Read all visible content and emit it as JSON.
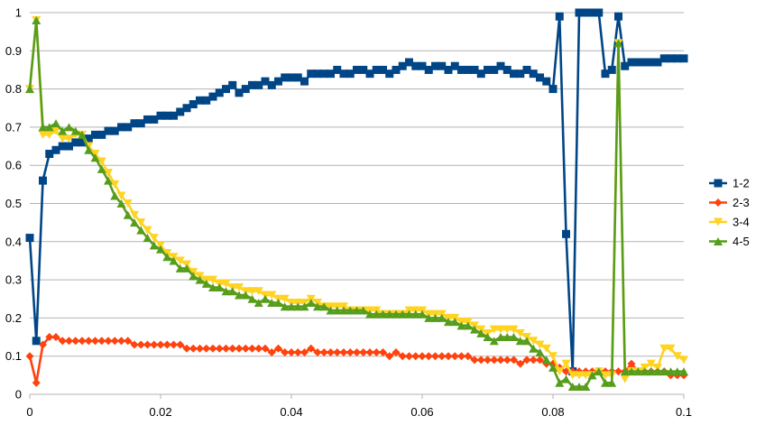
{
  "chart_data": {
    "type": "line",
    "title": "",
    "xlabel": "",
    "ylabel": "",
    "xlim": [
      0,
      0.1
    ],
    "ylim": [
      0,
      1
    ],
    "xticks": [
      {
        "value": 0,
        "label": "0"
      },
      {
        "value": 0.02,
        "label": "0.02"
      },
      {
        "value": 0.04,
        "label": "0.04"
      },
      {
        "value": 0.06,
        "label": "0.06"
      },
      {
        "value": 0.08,
        "label": "0.08"
      },
      {
        "value": 0.1,
        "label": "0.1"
      }
    ],
    "yticks": [
      {
        "value": 0,
        "label": "0"
      },
      {
        "value": 0.1,
        "label": "0.1"
      },
      {
        "value": 0.2,
        "label": "0.2"
      },
      {
        "value": 0.3,
        "label": "0.3"
      },
      {
        "value": 0.4,
        "label": "0.4"
      },
      {
        "value": 0.5,
        "label": "0.5"
      },
      {
        "value": 0.6,
        "label": "0.6"
      },
      {
        "value": 0.7,
        "label": "0.7"
      },
      {
        "value": 0.8,
        "label": "0.8"
      },
      {
        "value": 0.9,
        "label": "0.9"
      },
      {
        "value": 1,
        "label": "1"
      }
    ],
    "grid": "horizontal",
    "legend_position": "right",
    "x": [
      0,
      0.001,
      0.002,
      0.003,
      0.004,
      0.005,
      0.006,
      0.007,
      0.008,
      0.009,
      0.01,
      0.011,
      0.012,
      0.013,
      0.014,
      0.015,
      0.016,
      0.017,
      0.018,
      0.019,
      0.02,
      0.021,
      0.022,
      0.023,
      0.024,
      0.025,
      0.026,
      0.027,
      0.028,
      0.029,
      0.03,
      0.031,
      0.032,
      0.033,
      0.034,
      0.035,
      0.036,
      0.037,
      0.038,
      0.039,
      0.04,
      0.041,
      0.042,
      0.043,
      0.044,
      0.045,
      0.046,
      0.047,
      0.048,
      0.049,
      0.05,
      0.051,
      0.052,
      0.053,
      0.054,
      0.055,
      0.056,
      0.057,
      0.058,
      0.059,
      0.06,
      0.061,
      0.062,
      0.063,
      0.064,
      0.065,
      0.066,
      0.067,
      0.068,
      0.069,
      0.07,
      0.071,
      0.072,
      0.073,
      0.074,
      0.075,
      0.076,
      0.077,
      0.078,
      0.079,
      0.08,
      0.081,
      0.082,
      0.083,
      0.084,
      0.085,
      0.086,
      0.087,
      0.088,
      0.089,
      0.09,
      0.091,
      0.092,
      0.093,
      0.094,
      0.095,
      0.096,
      0.097,
      0.098,
      0.099,
      0.1
    ],
    "series": [
      {
        "name": "1-2",
        "color": "#004586",
        "marker": "square",
        "values": [
          0.41,
          0.14,
          0.56,
          0.63,
          0.64,
          0.65,
          0.65,
          0.66,
          0.66,
          0.67,
          0.68,
          0.68,
          0.69,
          0.69,
          0.7,
          0.7,
          0.71,
          0.71,
          0.72,
          0.72,
          0.73,
          0.73,
          0.73,
          0.74,
          0.75,
          0.76,
          0.77,
          0.77,
          0.78,
          0.79,
          0.8,
          0.81,
          0.79,
          0.8,
          0.81,
          0.81,
          0.82,
          0.81,
          0.82,
          0.83,
          0.83,
          0.83,
          0.82,
          0.84,
          0.84,
          0.84,
          0.84,
          0.85,
          0.84,
          0.84,
          0.85,
          0.85,
          0.84,
          0.85,
          0.85,
          0.84,
          0.85,
          0.86,
          0.87,
          0.86,
          0.86,
          0.85,
          0.86,
          0.86,
          0.85,
          0.86,
          0.85,
          0.85,
          0.85,
          0.84,
          0.85,
          0.85,
          0.86,
          0.85,
          0.84,
          0.84,
          0.85,
          0.84,
          0.83,
          0.82,
          0.8,
          0.99,
          0.42,
          0.06,
          1.0,
          1.0,
          1.0,
          1.0,
          0.84,
          0.85,
          0.99,
          0.86,
          0.87,
          0.87,
          0.87,
          0.87,
          0.87,
          0.88,
          0.88,
          0.88,
          0.88
        ]
      },
      {
        "name": "2-3",
        "color": "#ff420e",
        "marker": "diamond",
        "values": [
          0.1,
          0.03,
          0.13,
          0.15,
          0.15,
          0.14,
          0.14,
          0.14,
          0.14,
          0.14,
          0.14,
          0.14,
          0.14,
          0.14,
          0.14,
          0.14,
          0.13,
          0.13,
          0.13,
          0.13,
          0.13,
          0.13,
          0.13,
          0.13,
          0.12,
          0.12,
          0.12,
          0.12,
          0.12,
          0.12,
          0.12,
          0.12,
          0.12,
          0.12,
          0.12,
          0.12,
          0.12,
          0.11,
          0.12,
          0.11,
          0.11,
          0.11,
          0.11,
          0.12,
          0.11,
          0.11,
          0.11,
          0.11,
          0.11,
          0.11,
          0.11,
          0.11,
          0.11,
          0.11,
          0.11,
          0.1,
          0.11,
          0.1,
          0.1,
          0.1,
          0.1,
          0.1,
          0.1,
          0.1,
          0.1,
          0.1,
          0.1,
          0.1,
          0.09,
          0.09,
          0.09,
          0.09,
          0.09,
          0.09,
          0.09,
          0.08,
          0.09,
          0.09,
          0.09,
          0.08,
          0.08,
          0.07,
          0.06,
          0.06,
          0.06,
          0.06,
          0.06,
          0.06,
          0.06,
          0.06,
          0.06,
          0.06,
          0.08,
          0.06,
          0.06,
          0.06,
          0.06,
          0.06,
          0.05,
          0.05,
          0.05
        ]
      },
      {
        "name": "3-4",
        "color": "#ffd320",
        "marker": "triangle-down",
        "values": [
          0.8,
          0.98,
          0.68,
          0.68,
          0.69,
          0.67,
          0.67,
          0.68,
          0.68,
          0.65,
          0.63,
          0.61,
          0.58,
          0.55,
          0.52,
          0.5,
          0.47,
          0.45,
          0.43,
          0.41,
          0.39,
          0.37,
          0.36,
          0.35,
          0.34,
          0.32,
          0.31,
          0.3,
          0.3,
          0.29,
          0.29,
          0.28,
          0.28,
          0.27,
          0.27,
          0.27,
          0.26,
          0.26,
          0.25,
          0.25,
          0.24,
          0.24,
          0.24,
          0.25,
          0.24,
          0.23,
          0.23,
          0.23,
          0.23,
          0.22,
          0.22,
          0.22,
          0.22,
          0.22,
          0.21,
          0.21,
          0.21,
          0.21,
          0.22,
          0.22,
          0.22,
          0.21,
          0.21,
          0.21,
          0.2,
          0.2,
          0.19,
          0.19,
          0.18,
          0.17,
          0.16,
          0.17,
          0.17,
          0.17,
          0.17,
          0.16,
          0.15,
          0.14,
          0.13,
          0.12,
          0.1,
          0.06,
          0.08,
          0.05,
          0.05,
          0.05,
          0.05,
          0.06,
          0.05,
          0.05,
          0.92,
          0.04,
          0.06,
          0.06,
          0.07,
          0.08,
          0.07,
          0.12,
          0.12,
          0.1,
          0.09
        ]
      },
      {
        "name": "4-5",
        "color": "#579d1c",
        "marker": "triangle-up",
        "values": [
          0.8,
          0.98,
          0.7,
          0.7,
          0.71,
          0.69,
          0.7,
          0.69,
          0.68,
          0.64,
          0.62,
          0.59,
          0.56,
          0.52,
          0.5,
          0.47,
          0.45,
          0.43,
          0.41,
          0.39,
          0.38,
          0.36,
          0.35,
          0.33,
          0.33,
          0.31,
          0.3,
          0.29,
          0.28,
          0.28,
          0.27,
          0.27,
          0.26,
          0.26,
          0.25,
          0.24,
          0.25,
          0.24,
          0.24,
          0.23,
          0.23,
          0.23,
          0.23,
          0.24,
          0.23,
          0.23,
          0.22,
          0.22,
          0.22,
          0.22,
          0.22,
          0.22,
          0.21,
          0.21,
          0.21,
          0.21,
          0.21,
          0.21,
          0.21,
          0.21,
          0.21,
          0.2,
          0.2,
          0.2,
          0.19,
          0.19,
          0.18,
          0.18,
          0.17,
          0.16,
          0.15,
          0.14,
          0.15,
          0.15,
          0.15,
          0.14,
          0.14,
          0.12,
          0.11,
          0.09,
          0.07,
          0.03,
          0.04,
          0.02,
          0.02,
          0.02,
          0.05,
          0.06,
          0.03,
          0.03,
          0.92,
          0.06,
          0.06,
          0.06,
          0.06,
          0.06,
          0.06,
          0.06,
          0.06,
          0.06,
          0.06
        ]
      }
    ]
  }
}
